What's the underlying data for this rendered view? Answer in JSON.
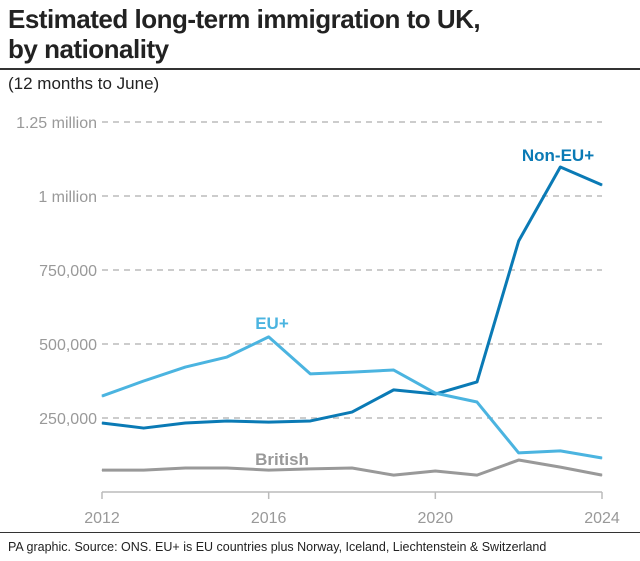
{
  "header": {
    "title_line1": "Estimated long-term immigration to UK,",
    "title_line2": "by nationality",
    "subtitle": "(12 months to June)"
  },
  "footer": {
    "source": "PA graphic. Source: ONS. EU+ is EU countries plus Norway, Iceland, Liechtenstein & Switzerland"
  },
  "chart_data": {
    "type": "line",
    "title": "Estimated long-term immigration to UK, by nationality",
    "subtitle": "(12 months to June)",
    "x": [
      2012,
      2013,
      2014,
      2015,
      2016,
      2017,
      2018,
      2019,
      2020,
      2021,
      2022,
      2023,
      2024
    ],
    "xlim": [
      2012,
      2024
    ],
    "ylim": [
      0,
      1250000
    ],
    "x_ticks": [
      {
        "value": 2012,
        "label": "2012"
      },
      {
        "value": 2016,
        "label": "2016"
      },
      {
        "value": 2020,
        "label": "2020"
      },
      {
        "value": 2024,
        "label": "2024"
      }
    ],
    "y_ticks": [
      {
        "value": 250000,
        "label": "250,000"
      },
      {
        "value": 500000,
        "label": "500,000"
      },
      {
        "value": 750000,
        "label": "750,000"
      },
      {
        "value": 1000000,
        "label": "1 million"
      },
      {
        "value": 1250000,
        "label": "1.25 million"
      }
    ],
    "grid": "horizontal dashed",
    "series": [
      {
        "name": "Non-EU+",
        "color": "#0a7ab5",
        "values": [
          233000,
          216000,
          233000,
          240000,
          236000,
          240000,
          270000,
          345000,
          331000,
          372000,
          848000,
          1098000,
          1037000
        ]
      },
      {
        "name": "EU+",
        "color": "#4bb4e0",
        "values": [
          324000,
          375000,
          422000,
          456000,
          524000,
          399000,
          405000,
          412000,
          334000,
          304000,
          132000,
          139000,
          115000
        ]
      },
      {
        "name": "British",
        "color": "#999999",
        "values": [
          74000,
          74000,
          81000,
          81000,
          74000,
          78000,
          81000,
          57000,
          71000,
          57000,
          108000,
          84000,
          57000
        ]
      }
    ]
  }
}
